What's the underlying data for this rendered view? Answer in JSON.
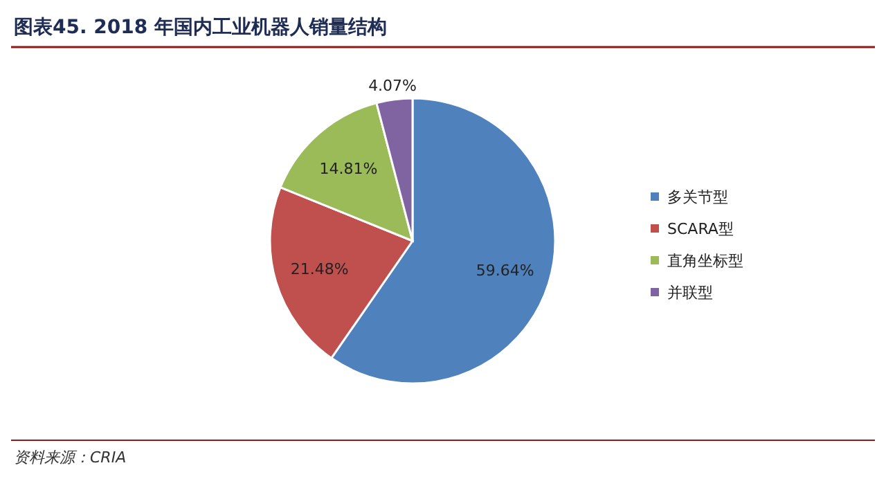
{
  "chart_data": {
    "type": "pie",
    "title": "图表45. 2018 年国内工业机器人销量结构",
    "categories": [
      "多关节型",
      "SCARA型",
      "直角坐标型",
      "并联型"
    ],
    "values": [
      59.64,
      21.48,
      14.81,
      4.07
    ],
    "colors": [
      "#4f81bd",
      "#c0504d",
      "#9bbb59",
      "#8064a2"
    ],
    "value_labels": [
      "59.64%",
      "21.48%",
      "14.81%",
      "4.07%"
    ],
    "legend": "right",
    "annotations": [
      "资料来源：CRIA"
    ]
  }
}
